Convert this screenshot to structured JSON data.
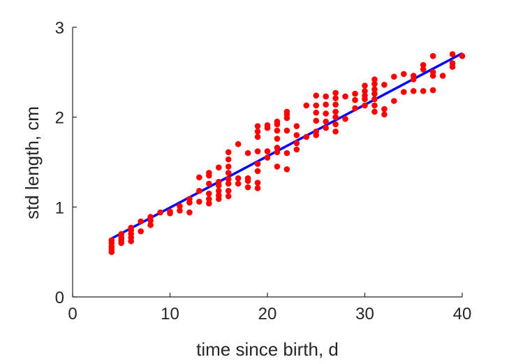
{
  "chart_data": {
    "type": "scatter",
    "title": "",
    "xlabel": "time since birth, d",
    "ylabel": "std length, cm",
    "xlim": [
      0,
      40
    ],
    "ylim": [
      0,
      3
    ],
    "xticks": [
      0,
      10,
      20,
      30,
      40
    ],
    "yticks": [
      0,
      1,
      2,
      3
    ],
    "grid": false,
    "colors": {
      "points": "#ff0000",
      "fit": "#0000ff",
      "axes": "#262626"
    },
    "fit_line": {
      "x": [
        4,
        40
      ],
      "y": [
        0.65,
        2.71
      ]
    },
    "points": [
      [
        4,
        0.5
      ],
      [
        4,
        0.53
      ],
      [
        4,
        0.56
      ],
      [
        4,
        0.6
      ],
      [
        4,
        0.63
      ],
      [
        5,
        0.6
      ],
      [
        5,
        0.63
      ],
      [
        5,
        0.66
      ],
      [
        5,
        0.7
      ],
      [
        6,
        0.62
      ],
      [
        6,
        0.66
      ],
      [
        6,
        0.7
      ],
      [
        6,
        0.74
      ],
      [
        6,
        0.77
      ],
      [
        7,
        0.73
      ],
      [
        7,
        0.84
      ],
      [
        8,
        0.8
      ],
      [
        8,
        0.85
      ],
      [
        8,
        0.89
      ],
      [
        9,
        0.94
      ],
      [
        10,
        0.93
      ],
      [
        10,
        0.95
      ],
      [
        11,
        0.96
      ],
      [
        11,
        1.01
      ],
      [
        12,
        0.94
      ],
      [
        12,
        1.05
      ],
      [
        12,
        1.09
      ],
      [
        13,
        1.06
      ],
      [
        13,
        1.18
      ],
      [
        13,
        1.33
      ],
      [
        14,
        1.04
      ],
      [
        14,
        1.09
      ],
      [
        14,
        1.15
      ],
      [
        14,
        1.26
      ],
      [
        14,
        1.35
      ],
      [
        14,
        1.38
      ],
      [
        15,
        1.09
      ],
      [
        15,
        1.13
      ],
      [
        15,
        1.18
      ],
      [
        15,
        1.24
      ],
      [
        15,
        1.28
      ],
      [
        15,
        1.44
      ],
      [
        16,
        1.12
      ],
      [
        16,
        1.18
      ],
      [
        16,
        1.26
      ],
      [
        16,
        1.31
      ],
      [
        16,
        1.38
      ],
      [
        16,
        1.45
      ],
      [
        16,
        1.53
      ],
      [
        16,
        1.61
      ],
      [
        17,
        1.26
      ],
      [
        17,
        1.32
      ],
      [
        17,
        1.7
      ],
      [
        18,
        1.22
      ],
      [
        18,
        1.29
      ],
      [
        18,
        1.32
      ],
      [
        18,
        1.6
      ],
      [
        19,
        1.21
      ],
      [
        19,
        1.27
      ],
      [
        19,
        1.4
      ],
      [
        19,
        1.48
      ],
      [
        19,
        1.62
      ],
      [
        19,
        1.78
      ],
      [
        19,
        1.84
      ],
      [
        19,
        1.9
      ],
      [
        20,
        1.55
      ],
      [
        20,
        1.62
      ],
      [
        20,
        1.88
      ],
      [
        20,
        1.91
      ],
      [
        21,
        1.45
      ],
      [
        21,
        1.61
      ],
      [
        21,
        1.66
      ],
      [
        21,
        1.76
      ],
      [
        21,
        1.85
      ],
      [
        21,
        1.92
      ],
      [
        21,
        1.95
      ],
      [
        22,
        1.42
      ],
      [
        22,
        1.6
      ],
      [
        22,
        1.85
      ],
      [
        22,
        1.99
      ],
      [
        22,
        2.03
      ],
      [
        22,
        2.06
      ],
      [
        23,
        1.64
      ],
      [
        23,
        1.71
      ],
      [
        23,
        1.8
      ],
      [
        23,
        1.9
      ],
      [
        24,
        1.78
      ],
      [
        24,
        2.13
      ],
      [
        25,
        1.8
      ],
      [
        25,
        1.84
      ],
      [
        25,
        1.96
      ],
      [
        25,
        2.05
      ],
      [
        25,
        2.13
      ],
      [
        25,
        2.24
      ],
      [
        26,
        1.88
      ],
      [
        26,
        1.95
      ],
      [
        26,
        2.04
      ],
      [
        26,
        2.14
      ],
      [
        26,
        2.23
      ],
      [
        27,
        1.84
      ],
      [
        27,
        1.92
      ],
      [
        27,
        2.0
      ],
      [
        27,
        2.06
      ],
      [
        27,
        2.14
      ],
      [
        27,
        2.21
      ],
      [
        27,
        2.27
      ],
      [
        28,
        1.98
      ],
      [
        28,
        2.23
      ],
      [
        29,
        2.1
      ],
      [
        29,
        2.19
      ],
      [
        29,
        2.26
      ],
      [
        30,
        2.13
      ],
      [
        30,
        2.2
      ],
      [
        30,
        2.24
      ],
      [
        30,
        2.29
      ],
      [
        30,
        2.35
      ],
      [
        31,
        2.06
      ],
      [
        31,
        2.13
      ],
      [
        31,
        2.2
      ],
      [
        31,
        2.26
      ],
      [
        31,
        2.31
      ],
      [
        31,
        2.37
      ],
      [
        31,
        2.42
      ],
      [
        32,
        2.03
      ],
      [
        32,
        2.09
      ],
      [
        32,
        2.36
      ],
      [
        33,
        2.18
      ],
      [
        33,
        2.45
      ],
      [
        34,
        2.28
      ],
      [
        34,
        2.48
      ],
      [
        35,
        2.29
      ],
      [
        35,
        2.42
      ],
      [
        35,
        2.46
      ],
      [
        36,
        2.29
      ],
      [
        36,
        2.53
      ],
      [
        36,
        2.58
      ],
      [
        37,
        2.3
      ],
      [
        37,
        2.46
      ],
      [
        37,
        2.5
      ],
      [
        37,
        2.68
      ],
      [
        38,
        2.46
      ],
      [
        39,
        2.56
      ],
      [
        39,
        2.6
      ],
      [
        39,
        2.7
      ],
      [
        40,
        2.68
      ]
    ]
  }
}
